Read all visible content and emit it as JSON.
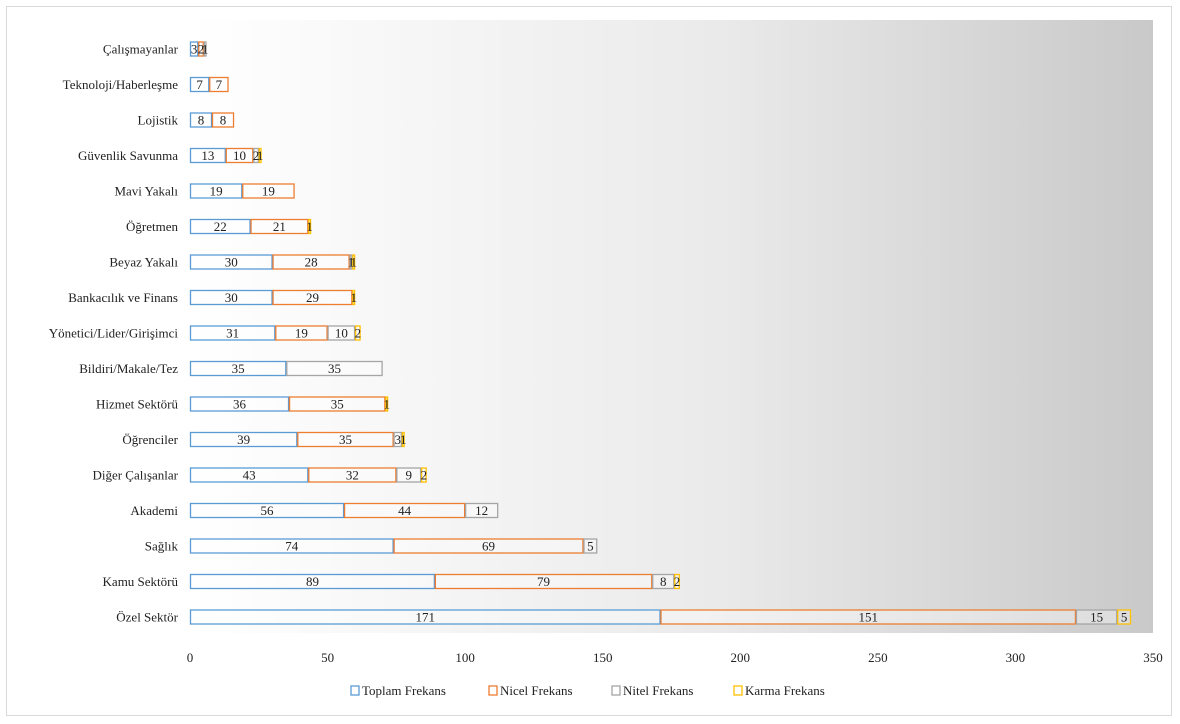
{
  "chart_data": {
    "type": "bar",
    "orientation": "horizontal",
    "stacked": true,
    "categories": [
      "Özel Sektör",
      "Kamu Sektörü",
      "Sağlık",
      "Akademi",
      "Diğer Çalışanlar",
      "Öğrenciler",
      "Hizmet Sektörü",
      "Bildiri/Makale/Tez",
      "Yönetici/Lider/Girişimci",
      "Bankacılık ve Finans",
      "Beyaz Yakalı",
      "Öğretmen",
      "Mavi Yakalı",
      "Güvenlik Savunma",
      "Lojistik",
      "Teknoloji/Haberleşme",
      "Çalışmayanlar"
    ],
    "series": [
      {
        "name": "Toplam Frekans",
        "color": "#5b9bd5",
        "values": [
          171,
          89,
          74,
          56,
          43,
          39,
          36,
          35,
          31,
          30,
          30,
          22,
          19,
          13,
          8,
          7,
          3
        ]
      },
      {
        "name": "Nicel Frekans",
        "color": "#ed7d31",
        "values": [
          151,
          79,
          69,
          44,
          32,
          35,
          35,
          0,
          19,
          29,
          28,
          21,
          19,
          10,
          8,
          7,
          2
        ]
      },
      {
        "name": "Nitel Frekans",
        "color": "#a5a5a5",
        "values": [
          15,
          8,
          5,
          12,
          9,
          3,
          0,
          35,
          10,
          0,
          1,
          0,
          0,
          2,
          0,
          0,
          1
        ]
      },
      {
        "name": "Karma Frekans",
        "color": "#ffc000",
        "values": [
          5,
          2,
          0,
          0,
          2,
          1,
          1,
          0,
          2,
          1,
          1,
          1,
          0,
          1,
          0,
          0,
          0
        ]
      }
    ],
    "xlim": [
      0,
      350
    ],
    "xticks": [
      0,
      50,
      100,
      150,
      200,
      250,
      300,
      350
    ],
    "legend_position": "bottom",
    "grid": false
  }
}
